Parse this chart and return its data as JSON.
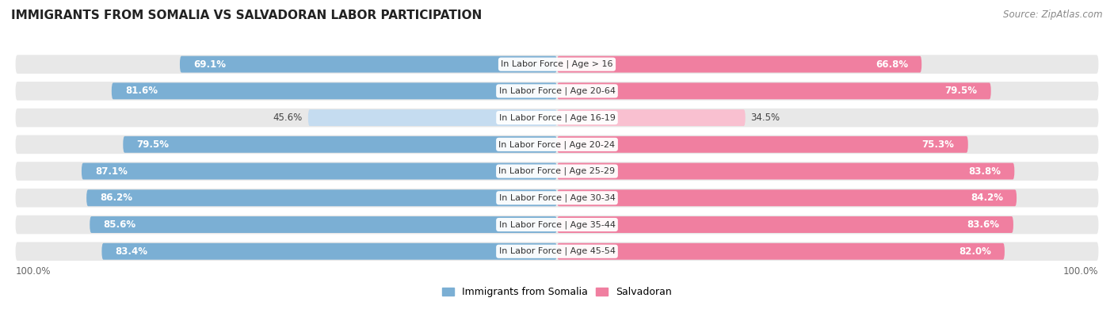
{
  "title": "IMMIGRANTS FROM SOMALIA VS SALVADORAN LABOR PARTICIPATION",
  "source": "Source: ZipAtlas.com",
  "categories": [
    "In Labor Force | Age > 16",
    "In Labor Force | Age 20-64",
    "In Labor Force | Age 16-19",
    "In Labor Force | Age 20-24",
    "In Labor Force | Age 25-29",
    "In Labor Force | Age 30-34",
    "In Labor Force | Age 35-44",
    "In Labor Force | Age 45-54"
  ],
  "somalia_values": [
    69.1,
    81.6,
    45.6,
    79.5,
    87.1,
    86.2,
    85.6,
    83.4
  ],
  "salvadoran_values": [
    66.8,
    79.5,
    34.5,
    75.3,
    83.8,
    84.2,
    83.6,
    82.0
  ],
  "somalia_color": "#7BAFD4",
  "somalia_color_light": "#C5DCF0",
  "salvadoran_color": "#F07FA0",
  "salvadoran_color_light": "#F9C0D0",
  "row_bg_color": "#e8e8e8",
  "title_fontsize": 11,
  "source_fontsize": 8.5,
  "bar_label_fontsize": 8.5,
  "category_fontsize": 8,
  "legend_fontsize": 9,
  "max_value": 100.0,
  "background_color": "#ffffff"
}
